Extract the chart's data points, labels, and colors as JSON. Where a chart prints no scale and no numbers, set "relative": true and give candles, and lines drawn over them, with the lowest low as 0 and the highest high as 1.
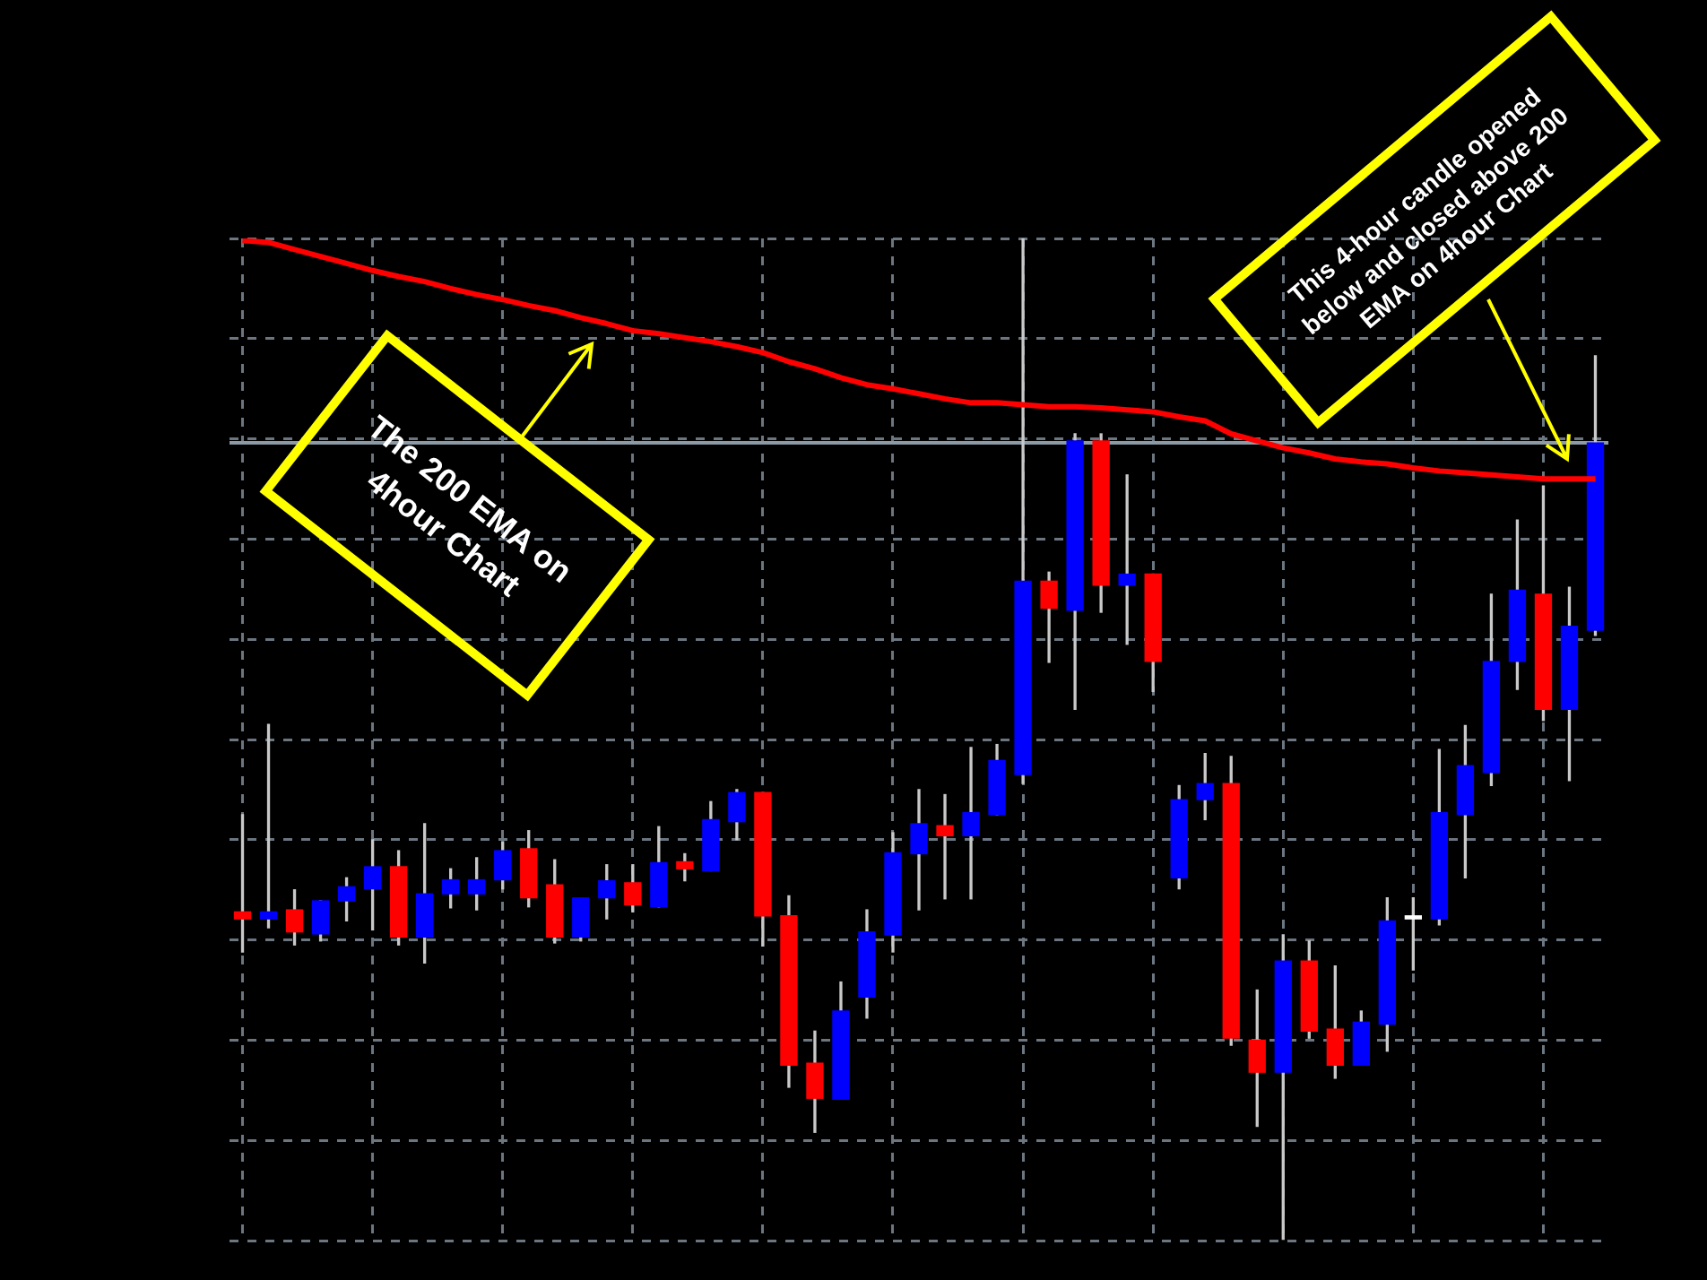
{
  "chart_data": {
    "type": "candlestick",
    "relative": true,
    "grid": true,
    "legend": false,
    "marker": "none",
    "categories": [
      null,
      null,
      null,
      null,
      null,
      null,
      null,
      null,
      null,
      null,
      null,
      null,
      null,
      null,
      null,
      null,
      null,
      null,
      null,
      null,
      null,
      null,
      null,
      null,
      null,
      null,
      null,
      null,
      null,
      null,
      null,
      null,
      null,
      null,
      null,
      null,
      null,
      null,
      null,
      null,
      null,
      null,
      null,
      null,
      null,
      null,
      null,
      null,
      null,
      null,
      null,
      null,
      null
    ],
    "ohlc": [
      [
        0.328,
        0.425,
        0.288,
        0.321
      ],
      [
        0.321,
        0.515,
        0.312,
        0.328
      ],
      [
        0.33,
        0.35,
        0.295,
        0.308
      ],
      [
        0.306,
        0.339,
        0.299,
        0.339
      ],
      [
        0.339,
        0.362,
        0.319,
        0.353
      ],
      [
        0.351,
        0.4,
        0.31,
        0.373
      ],
      [
        0.373,
        0.389,
        0.295,
        0.303
      ],
      [
        0.303,
        0.416,
        0.277,
        0.346
      ],
      [
        0.346,
        0.371,
        0.332,
        0.36
      ],
      [
        0.346,
        0.382,
        0.33,
        0.36
      ],
      [
        0.36,
        0.398,
        0.351,
        0.389
      ],
      [
        0.391,
        0.409,
        0.333,
        0.342
      ],
      [
        0.355,
        0.38,
        0.297,
        0.303
      ],
      [
        0.303,
        0.342,
        0.299,
        0.342
      ],
      [
        0.342,
        0.375,
        0.321,
        0.359
      ],
      [
        0.357,
        0.375,
        0.328,
        0.335
      ],
      [
        0.333,
        0.413,
        0.333,
        0.377
      ],
      [
        0.378,
        0.386,
        0.359,
        0.371
      ],
      [
        0.369,
        0.438,
        0.369,
        0.42
      ],
      [
        0.418,
        0.45,
        0.4,
        0.447
      ],
      [
        0.447,
        0.447,
        0.294,
        0.324
      ],
      [
        0.324,
        0.344,
        0.153,
        0.175
      ],
      [
        0.177,
        0.209,
        0.108,
        0.142
      ],
      [
        0.141,
        0.258,
        0.141,
        0.229
      ],
      [
        0.243,
        0.33,
        0.222,
        0.308
      ],
      [
        0.305,
        0.407,
        0.288,
        0.387
      ],
      [
        0.386,
        0.45,
        0.33,
        0.416
      ],
      [
        0.414,
        0.445,
        0.341,
        0.404
      ],
      [
        0.404,
        0.492,
        0.341,
        0.427
      ],
      [
        0.425,
        0.495,
        0.425,
        0.479
      ],
      [
        0.465,
        1.0,
        0.456,
        0.658
      ],
      [
        0.658,
        0.667,
        0.577,
        0.631
      ],
      [
        0.629,
        0.805,
        0.53,
        0.798
      ],
      [
        0.798,
        0.805,
        0.627,
        0.654
      ],
      [
        0.654,
        0.764,
        0.595,
        0.665
      ],
      [
        0.665,
        0.665,
        0.548,
        0.578
      ],
      [
        0.362,
        0.454,
        0.351,
        0.44
      ],
      [
        0.44,
        0.486,
        0.42,
        0.456
      ],
      [
        0.456,
        0.483,
        0.195,
        0.202
      ],
      [
        0.2,
        0.25,
        0.114,
        0.168
      ],
      [
        0.168,
        0.305,
        0.0,
        0.279
      ],
      [
        0.279,
        0.299,
        0.202,
        0.209
      ],
      [
        0.211,
        0.274,
        0.162,
        0.175
      ],
      [
        0.175,
        0.229,
        0.175,
        0.218
      ],
      [
        0.216,
        0.342,
        0.189,
        0.319
      ],
      [
        0.321,
        0.342,
        0.27,
        0.324
      ],
      [
        0.321,
        0.49,
        0.315,
        0.427
      ],
      [
        0.425,
        0.514,
        0.362,
        0.474
      ],
      [
        0.467,
        0.645,
        0.454,
        0.578
      ],
      [
        0.578,
        0.719,
        0.55,
        0.649
      ],
      [
        0.645,
        0.753,
        0.519,
        0.53
      ],
      [
        0.53,
        0.652,
        0.459,
        0.613
      ],
      [
        0.609,
        0.883,
        0.604,
        0.796
      ]
    ],
    "colors": [
      "#ff0000",
      "#0000ff",
      "#ff0000",
      "#0000ff",
      "#0000ff",
      "#0000ff",
      "#ff0000",
      "#0000ff",
      "#0000ff",
      "#0000ff",
      "#0000ff",
      "#ff0000",
      "#ff0000",
      "#0000ff",
      "#0000ff",
      "#ff0000",
      "#0000ff",
      "#ff0000",
      "#0000ff",
      "#0000ff",
      "#ff0000",
      "#ff0000",
      "#ff0000",
      "#0000ff",
      "#0000ff",
      "#0000ff",
      "#0000ff",
      "#ff0000",
      "#0000ff",
      "#0000ff",
      "#0000ff",
      "#ff0000",
      "#0000ff",
      "#ff0000",
      "#0000ff",
      "#ff0000",
      "#0000ff",
      "#0000ff",
      "#ff0000",
      "#ff0000",
      "#0000ff",
      "#ff0000",
      "#ff0000",
      "#0000ff",
      "#0000ff",
      "#ffffff",
      "#0000ff",
      "#0000ff",
      "#0000ff",
      "#0000ff",
      "#ff0000",
      "#0000ff",
      "#0000ff"
    ],
    "series": [
      {
        "type": "line",
        "color": "#ff0000",
        "values": [
          0.998,
          0.996,
          0.989,
          0.982,
          0.975,
          0.968,
          0.962,
          0.957,
          0.95,
          0.944,
          0.939,
          0.933,
          0.928,
          0.921,
          0.915,
          0.908,
          0.905,
          0.901,
          0.897,
          0.892,
          0.886,
          0.877,
          0.87,
          0.861,
          0.854,
          0.85,
          0.845,
          0.84,
          0.836,
          0.836,
          0.834,
          0.832,
          0.832,
          0.831,
          0.829,
          0.827,
          0.822,
          0.818,
          0.805,
          0.798,
          0.791,
          0.786,
          0.78,
          0.777,
          0.775,
          0.771,
          0.768,
          0.766,
          0.764,
          0.762,
          0.76,
          0.76,
          0.76
        ]
      }
    ],
    "ref_lines": [
      {
        "axis": "y",
        "value": 0.796,
        "color": "#8c9aa6"
      }
    ],
    "annotations": [
      "The 200 EMA on 4hour Chart",
      "This 4-hour candle opened below and closed above 200 EMA on 4hour Chart"
    ]
  }
}
